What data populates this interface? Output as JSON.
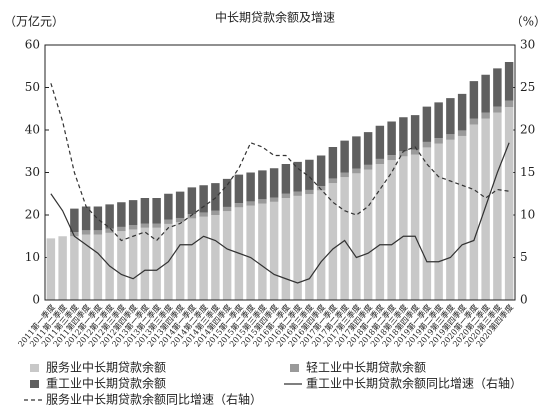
{
  "chart_data": {
    "type": "bar",
    "title": "中长期贷款余额及增速",
    "ylabel": "（万亿元）",
    "y2label": "（%）",
    "categories": [
      "2011第一季度",
      "2011第二季度",
      "2011第三季度",
      "2011第四季度",
      "2012第一季度",
      "2012第二季度",
      "2012第三季度",
      "2012第四季度",
      "2013第一季度",
      "2013第二季度",
      "2013第三季度",
      "2013第四季度",
      "2014第一季度",
      "2014第二季度",
      "2014第三季度",
      "2014第四季度",
      "2015第一季度",
      "2015第二季度",
      "2015第三季度",
      "2015第四季度",
      "2016第一季度",
      "2016第二季度",
      "2016第三季度",
      "2016第四季度",
      "2017第一季度",
      "2017第二季度",
      "2017第三季度",
      "2017第四季度",
      "2018第一季度",
      "2018第二季度",
      "2018第三季度",
      "2018第四季度",
      "2019第一季度",
      "2019第二季度",
      "2019第三季度",
      "2019第四季度",
      "2020第一季度",
      "2020第二季度",
      "2020第三季度",
      "2020第四季度"
    ],
    "series": [
      {
        "name": "服务业中长期贷款余额",
        "type": "bar",
        "color": "#c8c8c8",
        "values": [
          14.5,
          15,
          15.0,
          15.4,
          15.4,
          15.8,
          16.2,
          16.6,
          17.0,
          17.0,
          17.9,
          18.3,
          19.2,
          19.6,
          20.0,
          20.9,
          21.8,
          22.2,
          22.7,
          23.1,
          24.0,
          24.5,
          24.9,
          25.8,
          27.5,
          28.9,
          29.8,
          30.7,
          32.0,
          32.9,
          33.8,
          34.2,
          35.9,
          36.8,
          37.7,
          38.6,
          41.3,
          42.7,
          44.1,
          45.4
        ]
      },
      {
        "name": "轻工业中长期贷款余额",
        "type": "bar",
        "color": "#9a9a9a",
        "values": [
          null,
          null,
          1.0,
          1.0,
          1.0,
          1.0,
          1.0,
          1.0,
          1.0,
          1.0,
          1.0,
          1.0,
          1.0,
          1.0,
          1.0,
          1.0,
          1.0,
          1.0,
          1.0,
          1.0,
          1.0,
          1.0,
          1.0,
          1.0,
          1.1,
          1.1,
          1.1,
          1.1,
          1.2,
          1.2,
          1.2,
          1.2,
          1.3,
          1.3,
          1.3,
          1.3,
          1.4,
          1.4,
          1.4,
          1.5
        ]
      },
      {
        "name": "重工业中长期贷款余额",
        "type": "bar",
        "color": "#5f5f5f",
        "values": [
          null,
          null,
          5.5,
          5.6,
          5.6,
          5.7,
          5.8,
          5.9,
          6.0,
          6.0,
          6.1,
          6.2,
          6.3,
          6.4,
          6.5,
          6.6,
          6.7,
          6.8,
          6.8,
          6.9,
          7.0,
          7.0,
          7.1,
          7.2,
          7.4,
          7.5,
          7.6,
          7.7,
          7.8,
          7.9,
          8.0,
          8.1,
          8.3,
          8.4,
          8.5,
          8.6,
          8.8,
          8.9,
          9.0,
          9.1
        ]
      },
      {
        "name": "重工业中长期贷款余额同比增速（右轴）",
        "type": "line",
        "axis": "y2",
        "color": "#333333",
        "dash": false,
        "values": [
          12.5,
          10.5,
          7.5,
          6.5,
          5.5,
          4,
          3,
          2.5,
          3.5,
          3.5,
          4.5,
          6.5,
          6.5,
          7.5,
          7,
          6,
          5.5,
          5,
          4,
          3,
          2.5,
          2,
          2.5,
          4.5,
          6,
          7,
          5,
          5.5,
          6.5,
          6.5,
          7.5,
          7.5,
          4.5,
          4.5,
          5,
          6.5,
          7,
          11,
          15,
          18.5
        ]
      },
      {
        "name": "服务业中长期贷款余额同比增速（右轴）",
        "type": "line",
        "axis": "y2",
        "color": "#333333",
        "dash": true,
        "values": [
          25.5,
          21,
          15,
          11,
          9.5,
          8.5,
          7,
          7.5,
          8,
          7,
          8.5,
          9,
          10,
          11,
          12,
          13.5,
          15.5,
          18.5,
          18,
          17,
          17,
          15.5,
          14.5,
          13,
          11.5,
          10.5,
          10,
          11,
          13,
          15,
          17.5,
          18,
          16,
          14.5,
          14,
          13.5,
          13,
          12,
          13,
          12.8
        ]
      }
    ],
    "ylim": [
      0,
      60
    ],
    "yticks": [
      0,
      10,
      20,
      30,
      40,
      50,
      60
    ],
    "y2lim": [
      0,
      30
    ],
    "y2ticks": [
      0,
      5,
      10,
      15,
      20,
      25,
      30
    ]
  }
}
